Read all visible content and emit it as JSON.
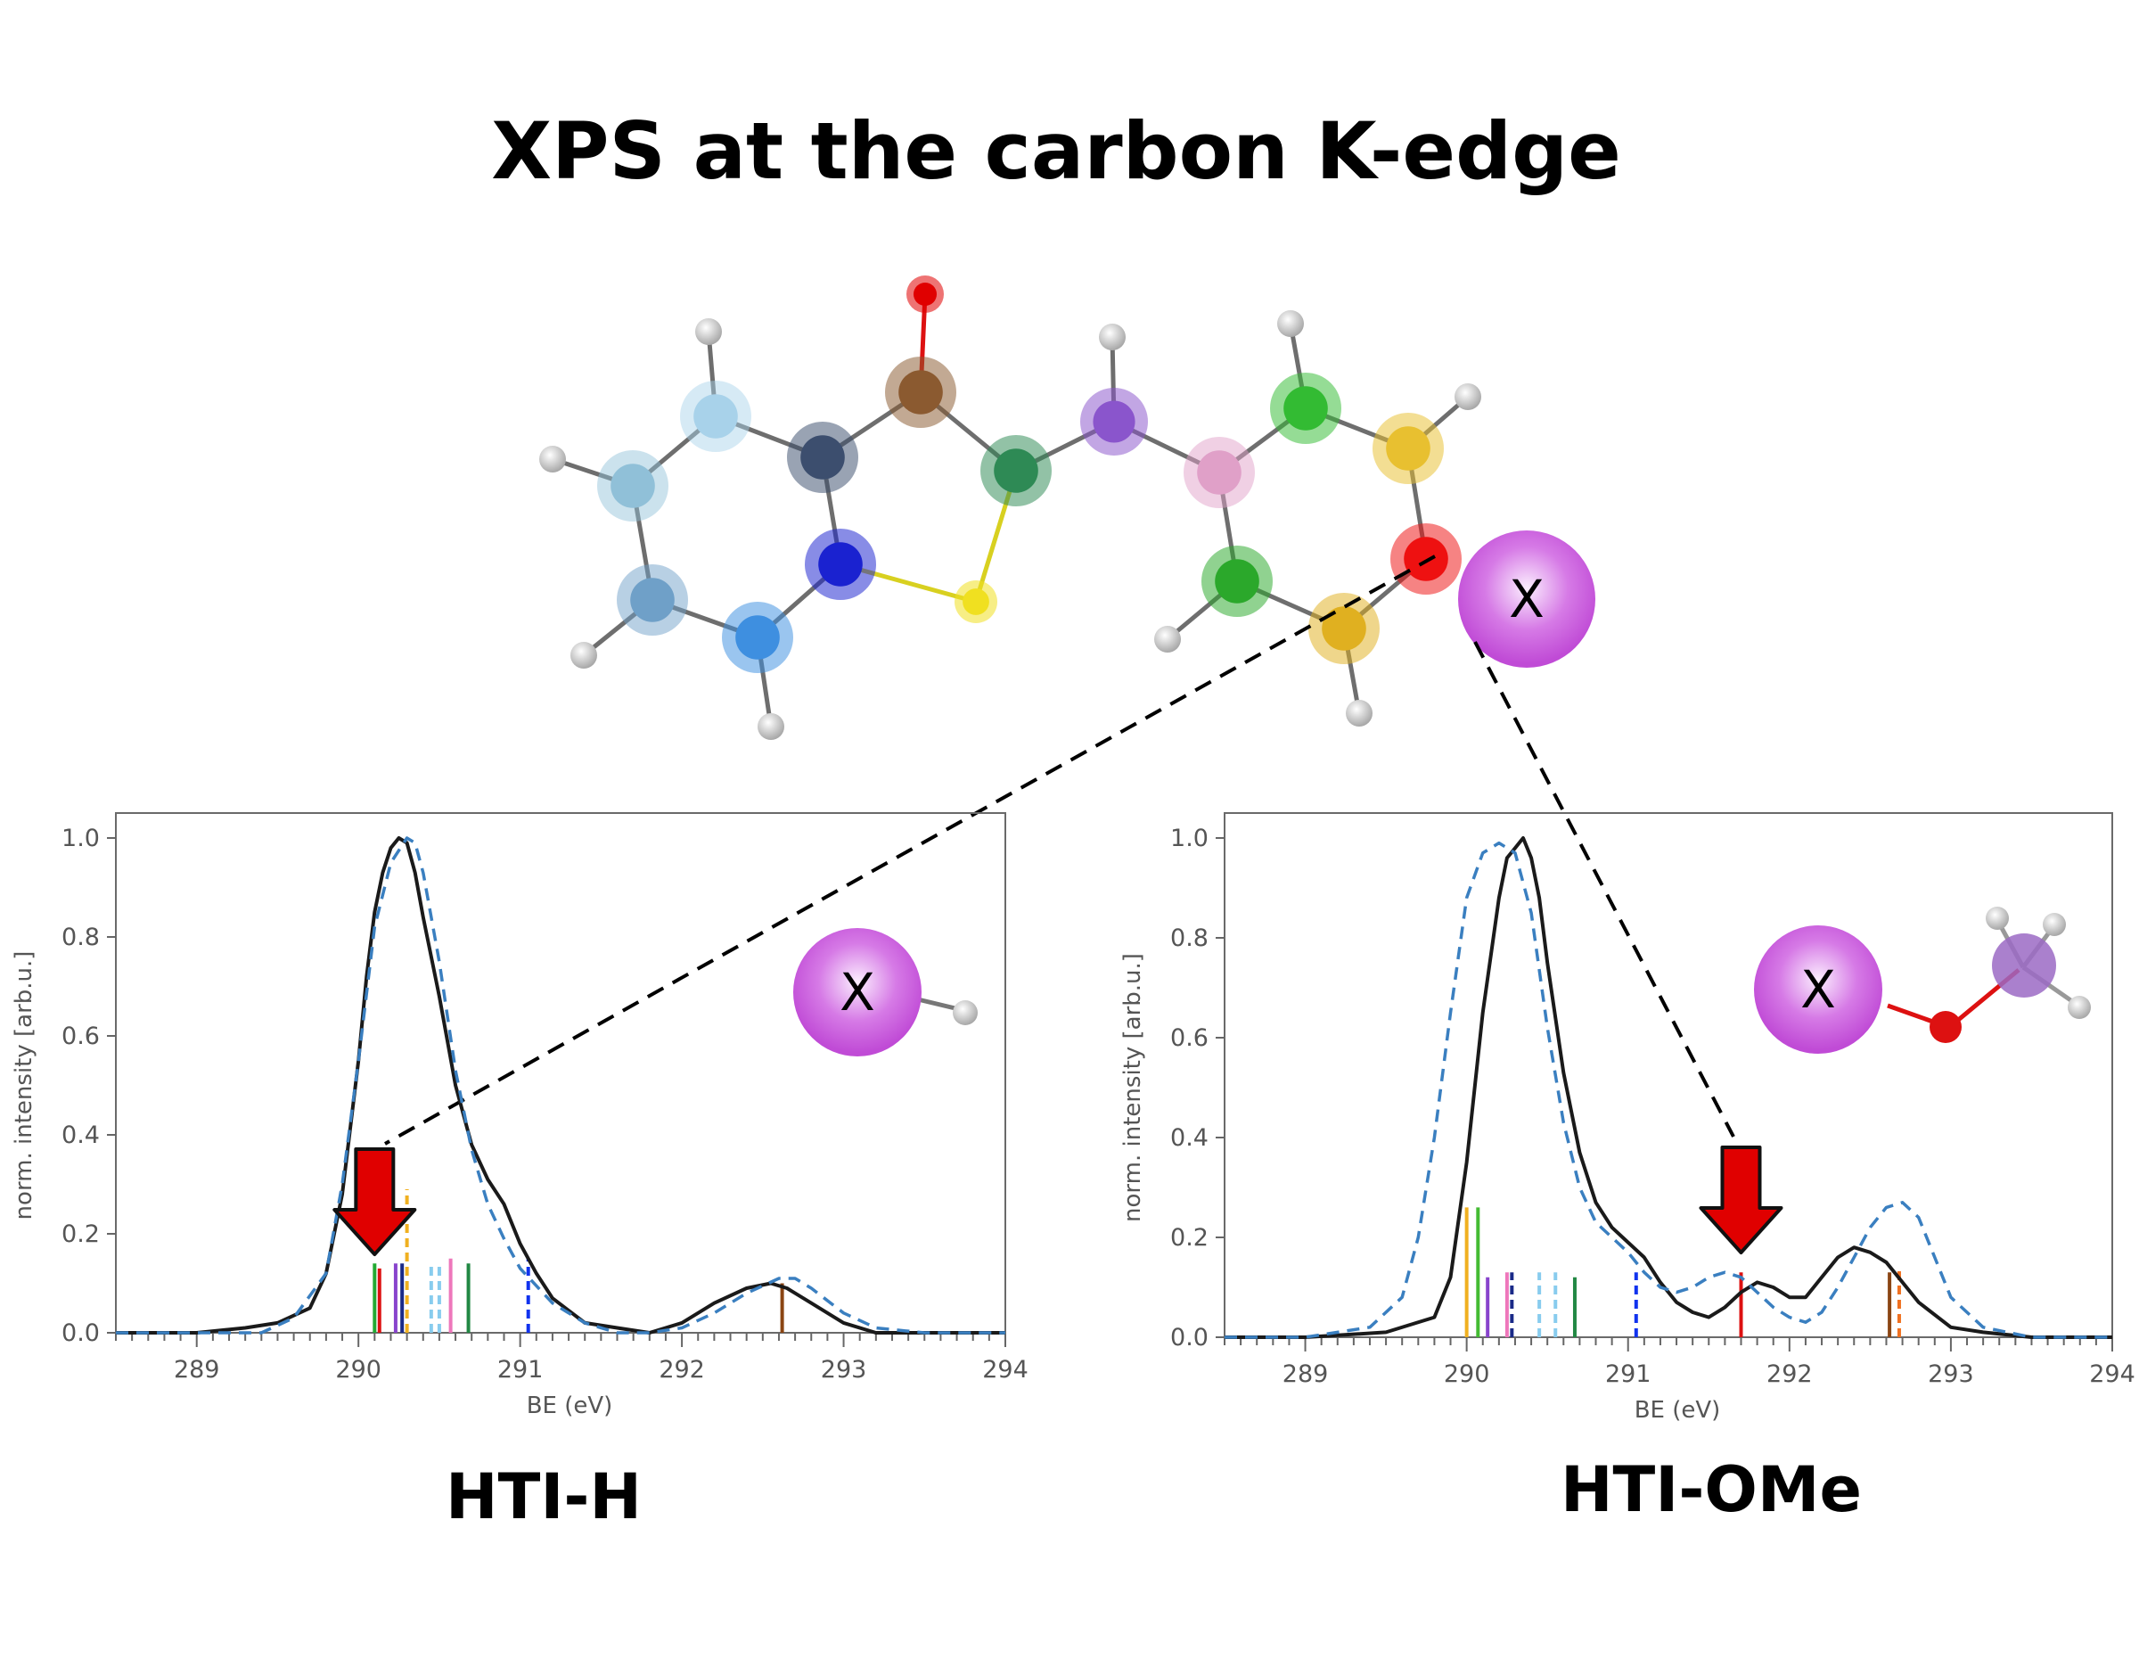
{
  "title": "XPS at the carbon K-edge",
  "panel_labels": [
    "HTI-H",
    "HTI-OMe"
  ],
  "substituent_label": "X",
  "colors": {
    "experiment": "#1a1a1a",
    "theory": "#3a7fc0",
    "arrow": "#e00000",
    "substituent": "#c84fd8"
  },
  "chart_data": [
    {
      "type": "line",
      "title": "HTI-H",
      "xlabel": "BE (eV)",
      "ylabel": "norm. intensity [arb.u.]",
      "xlim": [
        288.5,
        294
      ],
      "ylim": [
        0,
        1.0
      ],
      "xticks": [
        289,
        290,
        291,
        292,
        293,
        294
      ],
      "yticks": [
        "0.0",
        "0.2",
        "0.4",
        "0.6",
        "0.8",
        "1.0"
      ],
      "grid": false,
      "series": [
        {
          "style": "solid-black",
          "x": [
            288.5,
            289.0,
            289.3,
            289.5,
            289.7,
            289.8,
            289.9,
            290.0,
            290.05,
            290.1,
            290.15,
            290.2,
            290.25,
            290.3,
            290.35,
            290.4,
            290.5,
            290.6,
            290.7,
            290.8,
            290.9,
            291.0,
            291.1,
            291.2,
            291.4,
            291.6,
            291.8,
            292.0,
            292.2,
            292.4,
            292.55,
            292.65,
            292.8,
            293.0,
            293.2,
            293.5,
            294.0
          ],
          "y": [
            0.0,
            0.0,
            0.01,
            0.02,
            0.05,
            0.12,
            0.28,
            0.55,
            0.72,
            0.85,
            0.93,
            0.98,
            1.0,
            0.99,
            0.93,
            0.84,
            0.68,
            0.5,
            0.38,
            0.31,
            0.26,
            0.18,
            0.12,
            0.07,
            0.02,
            0.01,
            0.0,
            0.02,
            0.06,
            0.09,
            0.1,
            0.09,
            0.06,
            0.02,
            0.0,
            0.0,
            0.0
          ]
        },
        {
          "style": "dashed-blue",
          "x": [
            288.5,
            289.0,
            289.4,
            289.6,
            289.8,
            289.9,
            290.0,
            290.1,
            290.2,
            290.3,
            290.35,
            290.4,
            290.5,
            290.6,
            290.7,
            290.8,
            290.9,
            291.0,
            291.2,
            291.4,
            291.6,
            291.8,
            292.0,
            292.2,
            292.4,
            292.6,
            292.7,
            292.8,
            293.0,
            293.2,
            293.5,
            294.0
          ],
          "y": [
            0.0,
            0.0,
            0.0,
            0.03,
            0.12,
            0.3,
            0.55,
            0.82,
            0.95,
            1.0,
            0.99,
            0.93,
            0.75,
            0.53,
            0.37,
            0.26,
            0.19,
            0.13,
            0.06,
            0.02,
            0.0,
            0.0,
            0.01,
            0.04,
            0.08,
            0.11,
            0.11,
            0.09,
            0.04,
            0.01,
            0.0,
            0.0
          ]
        }
      ],
      "sticks": [
        {
          "x": 290.1,
          "h": 0.14,
          "color": "#22aa33",
          "dash": false
        },
        {
          "x": 290.13,
          "h": 0.13,
          "color": "#dd1111",
          "dash": false
        },
        {
          "x": 290.23,
          "h": 0.14,
          "color": "#8844cc",
          "dash": false
        },
        {
          "x": 290.27,
          "h": 0.14,
          "color": "#1a2a88",
          "dash": false
        },
        {
          "x": 290.3,
          "h": 0.29,
          "color": "#f0b020",
          "dash": true
        },
        {
          "x": 290.45,
          "h": 0.14,
          "color": "#88ccee",
          "dash": true
        },
        {
          "x": 290.5,
          "h": 0.14,
          "color": "#88ccee",
          "dash": true
        },
        {
          "x": 290.57,
          "h": 0.15,
          "color": "#ee77bb",
          "dash": false
        },
        {
          "x": 290.68,
          "h": 0.14,
          "color": "#228844",
          "dash": false
        },
        {
          "x": 291.05,
          "h": 0.15,
          "color": "#1133ee",
          "dash": true
        },
        {
          "x": 292.62,
          "h": 0.1,
          "color": "#8b4513",
          "dash": false
        }
      ],
      "arrow_at": 290.1
    },
    {
      "type": "line",
      "title": "HTI-OMe",
      "xlabel": "BE (eV)",
      "ylabel": "norm. intensity [arb.u.]",
      "xlim": [
        288.5,
        294
      ],
      "ylim": [
        0,
        1.0
      ],
      "xticks": [
        289,
        290,
        291,
        292,
        293,
        294
      ],
      "yticks": [
        "0.0",
        "0.2",
        "0.4",
        "0.6",
        "0.8",
        "1.0"
      ],
      "grid": false,
      "series": [
        {
          "style": "solid-black",
          "x": [
            288.5,
            289.0,
            289.5,
            289.8,
            289.9,
            290.0,
            290.1,
            290.2,
            290.25,
            290.3,
            290.35,
            290.4,
            290.45,
            290.5,
            290.6,
            290.7,
            290.8,
            290.9,
            291.0,
            291.1,
            291.2,
            291.3,
            291.4,
            291.5,
            291.6,
            291.7,
            291.8,
            291.9,
            292.0,
            292.1,
            292.2,
            292.3,
            292.4,
            292.5,
            292.6,
            292.7,
            292.8,
            293.0,
            293.2,
            293.5,
            294.0
          ],
          "y": [
            0.0,
            0.0,
            0.01,
            0.04,
            0.12,
            0.35,
            0.65,
            0.88,
            0.96,
            0.98,
            1.0,
            0.96,
            0.88,
            0.75,
            0.53,
            0.37,
            0.27,
            0.22,
            0.19,
            0.16,
            0.11,
            0.07,
            0.05,
            0.04,
            0.06,
            0.09,
            0.11,
            0.1,
            0.08,
            0.08,
            0.12,
            0.16,
            0.18,
            0.17,
            0.15,
            0.11,
            0.07,
            0.02,
            0.01,
            0.0,
            0.0
          ]
        },
        {
          "style": "dashed-blue",
          "x": [
            288.5,
            289.0,
            289.4,
            289.6,
            289.7,
            289.8,
            289.9,
            290.0,
            290.1,
            290.2,
            290.3,
            290.4,
            290.5,
            290.6,
            290.7,
            290.8,
            290.9,
            291.0,
            291.1,
            291.2,
            291.3,
            291.4,
            291.5,
            291.6,
            291.7,
            291.8,
            291.9,
            292.0,
            292.1,
            292.2,
            292.3,
            292.4,
            292.5,
            292.6,
            292.7,
            292.8,
            292.9,
            293.0,
            293.2,
            293.5,
            294.0
          ],
          "y": [
            0.0,
            0.0,
            0.02,
            0.08,
            0.2,
            0.4,
            0.65,
            0.88,
            0.97,
            0.99,
            0.97,
            0.85,
            0.62,
            0.43,
            0.3,
            0.23,
            0.2,
            0.17,
            0.13,
            0.1,
            0.09,
            0.1,
            0.12,
            0.13,
            0.12,
            0.09,
            0.06,
            0.04,
            0.03,
            0.05,
            0.1,
            0.16,
            0.22,
            0.26,
            0.27,
            0.24,
            0.16,
            0.08,
            0.02,
            0.0,
            0.0
          ]
        }
      ],
      "sticks": [
        {
          "x": 290.0,
          "h": 0.26,
          "color": "#f0b020",
          "dash": false
        },
        {
          "x": 290.07,
          "h": 0.26,
          "color": "#44bb33",
          "dash": false
        },
        {
          "x": 290.13,
          "h": 0.12,
          "color": "#8844cc",
          "dash": false
        },
        {
          "x": 290.25,
          "h": 0.13,
          "color": "#ee77bb",
          "dash": false
        },
        {
          "x": 290.28,
          "h": 0.13,
          "color": "#1a2a88",
          "dash": true
        },
        {
          "x": 290.45,
          "h": 0.13,
          "color": "#88ccee",
          "dash": true
        },
        {
          "x": 290.55,
          "h": 0.13,
          "color": "#88ccee",
          "dash": true
        },
        {
          "x": 290.67,
          "h": 0.12,
          "color": "#228844",
          "dash": false
        },
        {
          "x": 291.05,
          "h": 0.13,
          "color": "#1133ee",
          "dash": true
        },
        {
          "x": 291.7,
          "h": 0.13,
          "color": "#dd1111",
          "dash": false
        },
        {
          "x": 292.62,
          "h": 0.13,
          "color": "#8b4513",
          "dash": false
        },
        {
          "x": 292.68,
          "h": 0.14,
          "color": "#f07020",
          "dash": true
        }
      ],
      "arrow_at": 291.7
    }
  ]
}
